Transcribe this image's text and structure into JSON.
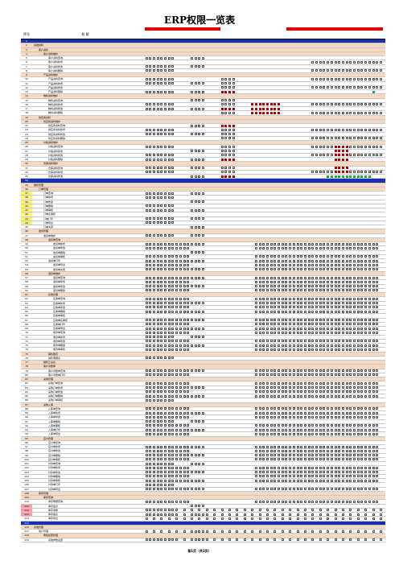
{
  "title": "ERP权限一览表",
  "header": {
    "code_label": "序号",
    "name_label": "权  限"
  },
  "footer": "第1页（共3页）",
  "column_count": 63,
  "rows": [
    {
      "n": "1",
      "t": "blue",
      "i": 0,
      "name": ""
    },
    {
      "n": "2",
      "t": "sec",
      "i": 0,
      "name": "基础资料"
    },
    {
      "n": "3",
      "t": "sec",
      "i": 1,
      "name": "客户资料"
    },
    {
      "n": "4",
      "t": "sec",
      "i": 2,
      "name": "客户资料维护"
    },
    {
      "n": "5",
      "t": "",
      "i": 3,
      "name": "客户资料查询"
    },
    {
      "n": "6",
      "t": "",
      "i": 3,
      "name": "客户资料新增"
    },
    {
      "n": "7",
      "t": "",
      "i": 3,
      "name": "客户资料修改"
    },
    {
      "n": "8",
      "t": "",
      "i": 3,
      "name": "客户资料删除"
    },
    {
      "n": "9",
      "t": "sec",
      "i": 2,
      "name": "产品资料维护"
    },
    {
      "n": "10",
      "t": "",
      "i": 3,
      "name": "产品资料查询"
    },
    {
      "n": "11",
      "t": "",
      "i": 3,
      "name": "产品资料新增"
    },
    {
      "n": "12",
      "t": "",
      "i": 3,
      "name": "产品资料修改"
    },
    {
      "n": "13",
      "t": "",
      "i": 3,
      "name": "产品资料删除"
    },
    {
      "n": "14",
      "t": "sec",
      "i": 2,
      "name": "物料资料维护"
    },
    {
      "n": "15",
      "t": "",
      "i": 3,
      "name": "物料资料查询"
    },
    {
      "n": "16",
      "t": "",
      "i": 3,
      "name": "物料资料新增"
    },
    {
      "n": "17",
      "t": "",
      "i": 3,
      "name": "物料资料修改"
    },
    {
      "n": "18",
      "t": "",
      "i": 3,
      "name": "物料资料删除"
    },
    {
      "n": "19",
      "t": "sec",
      "i": 1,
      "name": "供应商资料"
    },
    {
      "n": "20",
      "t": "sec",
      "i": 2,
      "name": "供应商资料维护"
    },
    {
      "n": "21",
      "t": "",
      "i": 3,
      "name": "供应商资料查询"
    },
    {
      "n": "22",
      "t": "",
      "i": 3,
      "name": "供应商资料新增"
    },
    {
      "n": "23",
      "t": "",
      "i": 3,
      "name": "供应商资料修改"
    },
    {
      "n": "24",
      "t": "",
      "i": 3,
      "name": "供应商资料删除"
    },
    {
      "n": "25",
      "t": "sec",
      "i": 2,
      "name": "价格资料维护"
    },
    {
      "n": "26",
      "t": "",
      "i": 3,
      "name": "价格资料查询"
    },
    {
      "n": "27",
      "t": "",
      "i": 3,
      "name": "价格资料新增"
    },
    {
      "n": "28",
      "t": "",
      "i": 3,
      "name": "价格资料修改"
    },
    {
      "n": "29",
      "t": "",
      "i": 3,
      "name": "价格资料删除"
    },
    {
      "n": "30",
      "t": "sec",
      "i": 2,
      "name": "仓库资料维护"
    },
    {
      "n": "31",
      "t": "",
      "i": 3,
      "name": "仓库资料查询"
    },
    {
      "n": "32",
      "t": "",
      "i": 3,
      "name": "仓库资料新增"
    },
    {
      "n": "33",
      "t": "",
      "i": 3,
      "name": "仓库资料修改"
    },
    {
      "n": "34",
      "t": "blue",
      "i": 0,
      "name": ""
    },
    {
      "n": "35",
      "t": "sec",
      "i": 0,
      "name": "销售管理"
    },
    {
      "n": "36",
      "t": "sec",
      "i": 1,
      "name": "订单管理"
    },
    {
      "n": "37",
      "t": "yel",
      "i": 2,
      "name": "订单查询"
    },
    {
      "n": "38",
      "t": "yel",
      "i": 2,
      "name": "订单新增"
    },
    {
      "n": "39",
      "t": "yel",
      "i": 2,
      "name": "订单修改"
    },
    {
      "n": "40",
      "t": "yel",
      "i": 2,
      "name": "订单删除"
    },
    {
      "n": "41",
      "t": "yel",
      "i": 2,
      "name": "订单审核"
    },
    {
      "n": "42",
      "t": "yel",
      "i": 2,
      "name": "订单反审核"
    },
    {
      "n": "43",
      "t": "yel",
      "i": 2,
      "name": "订单打印"
    },
    {
      "n": "44",
      "t": "yel",
      "i": 2,
      "name": "订单导出"
    },
    {
      "n": "45",
      "t": "",
      "i": 2,
      "name": "订单关闭"
    },
    {
      "n": "46",
      "t": "sec",
      "i": 1,
      "name": "发货管理"
    },
    {
      "n": "47",
      "t": "",
      "i": 2,
      "name": "发货单维护"
    },
    {
      "n": "48",
      "t": "sec",
      "i": 3,
      "name": "发货单查询"
    },
    {
      "n": "49",
      "t": "",
      "i": 4,
      "name": "发货单新增"
    },
    {
      "n": "50",
      "t": "",
      "i": 4,
      "name": "发货单修改"
    },
    {
      "n": "51",
      "t": "",
      "i": 4,
      "name": "发货单删除"
    },
    {
      "n": "52",
      "t": "",
      "i": 4,
      "name": "发货单审核"
    },
    {
      "n": "53",
      "t": "",
      "i": 3,
      "name": "发货单打印"
    },
    {
      "n": "54",
      "t": "",
      "i": 4,
      "name": "发货单导出"
    },
    {
      "n": "55",
      "t": "",
      "i": 4,
      "name": "发货单关闭"
    },
    {
      "n": "56",
      "t": "sec",
      "i": 3,
      "name": "退货单维护"
    },
    {
      "n": "57",
      "t": "",
      "i": 4,
      "name": "退货单查询"
    },
    {
      "n": "58",
      "t": "",
      "i": 4,
      "name": "退货单新增"
    },
    {
      "n": "59",
      "t": "",
      "i": 4,
      "name": "退货单修改"
    },
    {
      "n": "60",
      "t": "",
      "i": 4,
      "name": "退货单删除"
    },
    {
      "n": "61",
      "t": "sec",
      "i": 3,
      "name": "应收管理"
    },
    {
      "n": "62",
      "t": "",
      "i": 4,
      "name": "应收单查询"
    },
    {
      "n": "63",
      "t": "",
      "i": 4,
      "name": "应收单新增"
    },
    {
      "n": "64",
      "t": "",
      "i": 4,
      "name": "应收单修改"
    },
    {
      "n": "65",
      "t": "",
      "i": 4,
      "name": "应收单删除"
    },
    {
      "n": "66",
      "t": "",
      "i": 4,
      "name": "应收单审核"
    },
    {
      "n": "67",
      "t": "",
      "i": 4,
      "name": "应收单反审核"
    },
    {
      "n": "68",
      "t": "",
      "i": 4,
      "name": "应收单打印"
    },
    {
      "n": "69",
      "t": "",
      "i": 4,
      "name": "应收单导出"
    },
    {
      "n": "70",
      "t": "",
      "i": 4,
      "name": "收款单查询"
    },
    {
      "n": "71",
      "t": "",
      "i": 4,
      "name": "收款单新增"
    },
    {
      "n": "72",
      "t": "",
      "i": 4,
      "name": "收款单修改"
    },
    {
      "n": "73",
      "t": "",
      "i": 4,
      "name": "收款单删除"
    },
    {
      "n": "74",
      "t": "",
      "i": 4,
      "name": "收款单审核"
    },
    {
      "n": "75",
      "t": "sec",
      "i": 3,
      "name": "销售报表"
    },
    {
      "n": "76",
      "t": "",
      "i": 3,
      "name": "销售明细表"
    },
    {
      "n": "77",
      "t": "sec",
      "i": 2,
      "name": "销售汇总表"
    },
    {
      "n": "78",
      "t": "sec",
      "i": 2,
      "name": "客户对账单"
    },
    {
      "n": "79",
      "t": "",
      "i": 3,
      "name": "客户对账单查询"
    },
    {
      "n": "80",
      "t": "",
      "i": 3,
      "name": "客户对账单打印"
    },
    {
      "n": "81",
      "t": "sec",
      "i": 2,
      "name": "采购管理"
    },
    {
      "n": "82",
      "t": "",
      "i": 3,
      "name": "采购订单查询"
    },
    {
      "n": "83",
      "t": "",
      "i": 3,
      "name": "采购订单新增"
    },
    {
      "n": "84",
      "t": "",
      "i": 3,
      "name": "采购订单修改"
    },
    {
      "n": "85",
      "t": "",
      "i": 3,
      "name": "采购订单删除"
    },
    {
      "n": "86",
      "t": "",
      "i": 3,
      "name": "采购订单审核"
    },
    {
      "n": "87",
      "t": "sec",
      "i": 2,
      "name": "采购入库"
    },
    {
      "n": "88",
      "t": "",
      "i": 3,
      "name": "入库单查询"
    },
    {
      "n": "89",
      "t": "",
      "i": 3,
      "name": "入库单新增"
    },
    {
      "n": "90",
      "t": "",
      "i": 3,
      "name": "入库单修改"
    },
    {
      "n": "91",
      "t": "",
      "i": 3,
      "name": "入库单删除"
    },
    {
      "n": "92",
      "t": "",
      "i": 3,
      "name": "入库单审核"
    },
    {
      "n": "93",
      "t": "",
      "i": 3,
      "name": "入库单打印"
    },
    {
      "n": "94",
      "t": "",
      "i": 3,
      "name": "入库单导出"
    },
    {
      "n": "95",
      "t": "sec",
      "i": 2,
      "name": "应付管理"
    },
    {
      "n": "96",
      "t": "",
      "i": 3,
      "name": "应付单查询"
    },
    {
      "n": "97",
      "t": "",
      "i": 3,
      "name": "应付单新增"
    },
    {
      "n": "98",
      "t": "",
      "i": 3,
      "name": "应付单修改"
    },
    {
      "n": "99",
      "t": "",
      "i": 3,
      "name": "应付单删除"
    },
    {
      "n": "100",
      "t": "",
      "i": 3,
      "name": "应付单审核"
    },
    {
      "n": "101",
      "t": "",
      "i": 3,
      "name": "付款单查询"
    },
    {
      "n": "102",
      "t": "",
      "i": 3,
      "name": "付款单新增"
    },
    {
      "n": "103",
      "t": "",
      "i": 3,
      "name": "付款单修改"
    },
    {
      "n": "104",
      "t": "",
      "i": 3,
      "name": "付款单删除"
    },
    {
      "n": "105",
      "t": "",
      "i": 3,
      "name": "付款单审核"
    },
    {
      "n": "106",
      "t": "",
      "i": 3,
      "name": "付款单打印"
    },
    {
      "n": "107",
      "t": "",
      "i": 3,
      "name": "付款单导出"
    },
    {
      "n": "108",
      "t": "sec",
      "i": 1,
      "name": "库存管理"
    },
    {
      "n": "109",
      "t": "sec",
      "i": 2,
      "name": "库存查询"
    },
    {
      "n": "110",
      "t": "",
      "i": 3,
      "name": "库存明细查询"
    },
    {
      "n": "111",
      "t": "pink",
      "i": 3,
      "name": "库存盘点"
    },
    {
      "n": "112",
      "t": "pink",
      "i": 3,
      "name": "库存调拨"
    },
    {
      "n": "113",
      "t": "pink",
      "i": 3,
      "name": "库存报表"
    },
    {
      "n": "114",
      "t": "",
      "i": 3,
      "name": "库存导出"
    },
    {
      "n": "115",
      "t": "blue",
      "i": 0,
      "name": ""
    },
    {
      "n": "116",
      "t": "sec",
      "i": 0,
      "name": "系统管理"
    },
    {
      "n": "117",
      "t": "",
      "i": 1,
      "name": "用户管理"
    },
    {
      "n": "118",
      "t": "sec",
      "i": 2,
      "name": "角色权限管理"
    },
    {
      "n": "119",
      "t": "",
      "i": 3,
      "name": "系统参数设置"
    }
  ]
}
